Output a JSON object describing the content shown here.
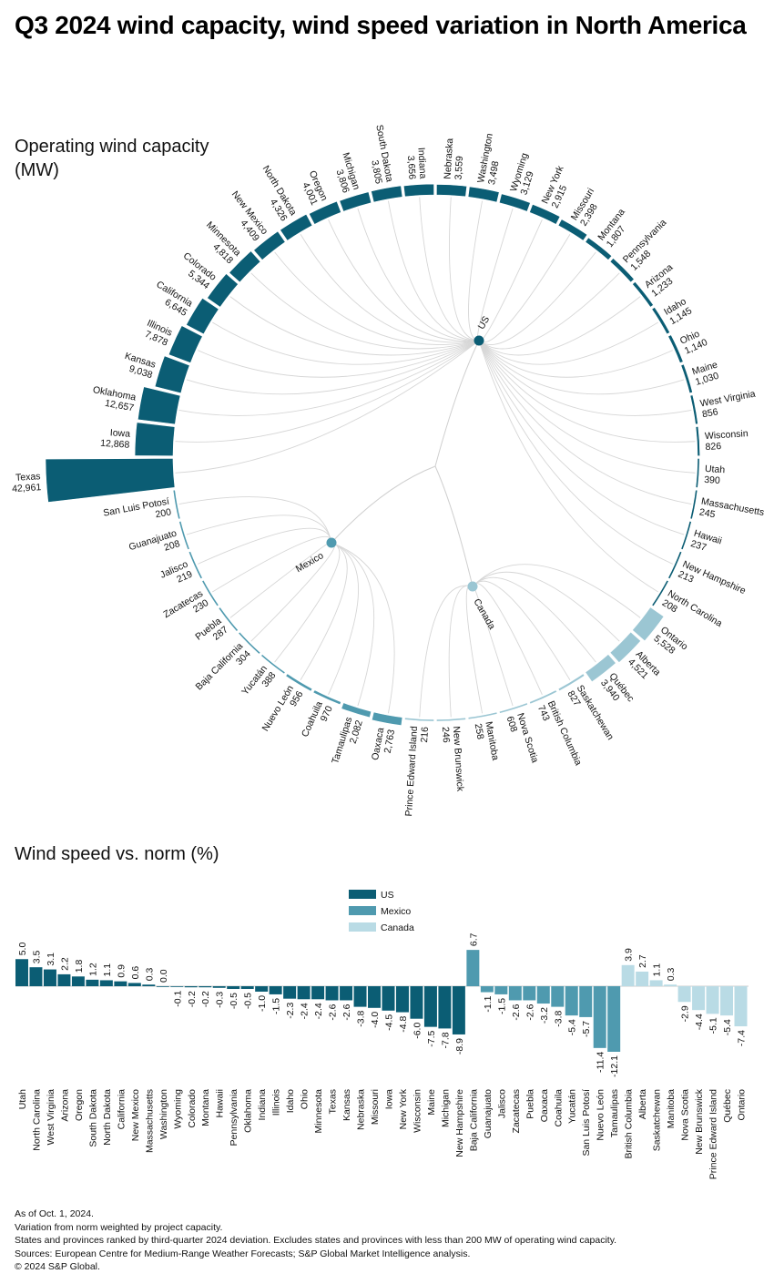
{
  "title": "Q3 2024 wind capacity, wind speed variation in North America",
  "radial": {
    "subtitle": "Operating wind capacity (MW)",
    "nodes": [
      {
        "name": "US",
        "color": "#0b5d74"
      },
      {
        "name": "Mexico",
        "color": "#4f9aaf"
      },
      {
        "name": "Canada",
        "color": "#9bc6d3"
      }
    ]
  },
  "bars": {
    "subtitle": "Wind speed vs. norm (%)",
    "legend": [
      {
        "name": "US",
        "color": "#0b5d74"
      },
      {
        "name": "Mexico",
        "color": "#4f9aaf"
      },
      {
        "name": "Canada",
        "color": "#b9dbe5"
      }
    ]
  },
  "chart_data": [
    {
      "type": "radial-bar",
      "title": "Operating wind capacity (MW)",
      "series": [
        {
          "name": "US",
          "categories": [
            "Texas",
            "Iowa",
            "Oklahoma",
            "Kansas",
            "Illinois",
            "California",
            "Colorado",
            "Minnesota",
            "New Mexico",
            "North Dakota",
            "Oregon",
            "Michigan",
            "South Dakota",
            "Indiana",
            "Nebraska",
            "Washington",
            "Wyoming",
            "New York",
            "Missouri",
            "Montana",
            "Pennsylvania",
            "Arizona",
            "Idaho",
            "Ohio",
            "Maine",
            "West Virginia",
            "Wisconsin",
            "Utah",
            "Massachusetts",
            "Hawaii",
            "New Hampshire",
            "North Carolina"
          ],
          "values": [
            42961,
            12868,
            12657,
            9038,
            7878,
            6645,
            5344,
            4818,
            4409,
            4326,
            4001,
            3806,
            3805,
            3656,
            3559,
            3498,
            3129,
            2915,
            2398,
            1807,
            1548,
            1233,
            1145,
            1140,
            1030,
            856,
            826,
            390,
            245,
            237,
            213,
            208
          ],
          "labels": [
            "42,961",
            "12,868",
            "12,657",
            "9,038",
            "7,878",
            "6,645",
            "5,344",
            "4,818",
            "4,409",
            "4,326",
            "4,001",
            "3,806",
            "3,805",
            "3,656",
            "3,559",
            "3,498",
            "3,129",
            "2,915",
            "2,398",
            "1,807",
            "1,548",
            "1,233",
            "1,145",
            "1,140",
            "1,030",
            "856",
            "826",
            "390",
            "245",
            "237",
            "213",
            "208"
          ]
        },
        {
          "name": "Canada",
          "categories": [
            "Ontario",
            "Alberta",
            "Québec",
            "Saskatchewan",
            "British Columbia",
            "Nova Scotia",
            "Manitoba",
            "New Brunswick",
            "Prince Edward Island"
          ],
          "values": [
            5528,
            4521,
            3940,
            827,
            743,
            608,
            258,
            246,
            216
          ],
          "labels": [
            "5,528",
            "4,521",
            "3,940",
            "827",
            "743",
            "608",
            "258",
            "246",
            "216"
          ]
        },
        {
          "name": "Mexico",
          "categories": [
            "Oaxaca",
            "Tamaulipas",
            "Coahuila",
            "Nuevo León",
            "Yucatán",
            "Baja California",
            "Puebla",
            "Zacatecas",
            "Jalisco",
            "Guanajuato",
            "San Luis Potosí"
          ],
          "values": [
            2763,
            2082,
            970,
            956,
            388,
            304,
            287,
            230,
            219,
            208,
            200
          ],
          "labels": [
            "2,763",
            "2,082",
            "970",
            "956",
            "388",
            "304",
            "287",
            "230",
            "219",
            "208",
            "200"
          ]
        }
      ]
    },
    {
      "type": "bar",
      "title": "Wind speed vs. norm (%)",
      "series": [
        {
          "name": "US",
          "categories": [
            "Utah",
            "North Carolina",
            "West Virginia",
            "Arizona",
            "Oregon",
            "South Dakota",
            "North Dakota",
            "California",
            "New Mexico",
            "Massachusetts",
            "Washington",
            "Wyoming",
            "Colorado",
            "Montana",
            "Hawaii",
            "Pennsylvania",
            "Oklahoma",
            "Indiana",
            "Illinois",
            "Idaho",
            "Ohio",
            "Minnesota",
            "Texas",
            "Kansas",
            "Nebraska",
            "Missouri",
            "Iowa",
            "New York",
            "Wisconsin",
            "Maine",
            "Michigan",
            "New Hampshire"
          ],
          "values": [
            5.0,
            3.5,
            3.1,
            2.2,
            1.8,
            1.2,
            1.1,
            0.9,
            0.6,
            0.3,
            0.0,
            -0.1,
            -0.2,
            -0.2,
            -0.3,
            -0.5,
            -0.5,
            -1.0,
            -1.5,
            -2.3,
            -2.4,
            -2.4,
            -2.6,
            -2.6,
            -3.8,
            -4.0,
            -4.5,
            -4.8,
            -6.0,
            -7.5,
            -7.8,
            -8.9
          ]
        },
        {
          "name": "Mexico",
          "categories": [
            "Baja California",
            "Guanajuato",
            "Jalisco",
            "Zacatecas",
            "Puebla",
            "Oaxaca",
            "Coahuila",
            "Yucatán",
            "San Luis Potosí",
            "Nuevo León",
            "Tamaulipas"
          ],
          "values": [
            6.7,
            -1.1,
            -1.5,
            -2.6,
            -2.6,
            -3.2,
            -3.8,
            -5.4,
            -5.7,
            -11.4,
            -12.1
          ]
        },
        {
          "name": "Canada",
          "categories": [
            "British Columbia",
            "Alberta",
            "Saskatchewan",
            "Manitoba",
            "Nova Scotia",
            "New Brunswick",
            "Prince Edward Island",
            "Québec",
            "Ontario"
          ],
          "values": [
            3.9,
            2.7,
            1.1,
            0.3,
            -2.9,
            -4.4,
            -5.1,
            -5.4,
            -7.4
          ]
        }
      ]
    }
  ],
  "footer": [
    "As of Oct. 1, 2024.",
    "Variation from norm weighted by project capacity.",
    "States and provinces ranked by third-quarter 2024 deviation. Excludes states and provinces with less than 200 MW of operating wind capacity.",
    "Sources: European Centre for Medium-Range Weather Forecasts; S&P Global Market Intelligence analysis.",
    "© 2024 S&P Global."
  ]
}
